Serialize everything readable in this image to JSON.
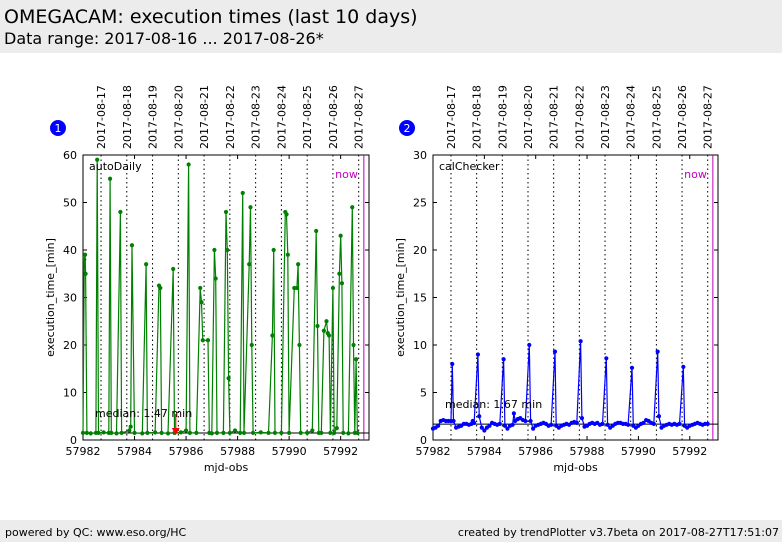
{
  "header": {
    "title": "OMEGACAM: execution times (last 10 days)",
    "subtitle": "Data range: 2017-08-16 ... 2017-08-26*"
  },
  "footer": {
    "left": "powered by QC: www.eso.org/HC",
    "right": "created by trendPlotter v3.7beta on 2017-08-27T17:51:07"
  },
  "colors": {
    "green": "#008000",
    "blue": "#0000ff",
    "now": "#bf00bf",
    "badge": "#0000ff",
    "arrow": "#ff0000"
  },
  "chart_data": [
    {
      "type": "scatter",
      "panel_badge": "1",
      "label": "autoDaily",
      "now_label": "now",
      "median_label": "median: 1.47 min",
      "median": 1.47,
      "xlabel": "mjd-obs",
      "ylabel": "execution_time_[min]",
      "xlim": [
        57982,
        57993.1
      ],
      "ylim": [
        0,
        60
      ],
      "xticks": [
        57982,
        57984,
        57986,
        57988,
        57990,
        57992
      ],
      "yticks": [
        0,
        10,
        20,
        30,
        40,
        50,
        60
      ],
      "date_ticks": [
        {
          "x": 57982.7,
          "label": "2017-08-17"
        },
        {
          "x": 57983.7,
          "label": "2017-08-18"
        },
        {
          "x": 57984.7,
          "label": "2017-08-19"
        },
        {
          "x": 57985.7,
          "label": "2017-08-20"
        },
        {
          "x": 57986.7,
          "label": "2017-08-21"
        },
        {
          "x": 57987.7,
          "label": "2017-08-22"
        },
        {
          "x": 57988.7,
          "label": "2017-08-23"
        },
        {
          "x": 57989.7,
          "label": "2017-08-24"
        },
        {
          "x": 57990.7,
          "label": "2017-08-25"
        },
        {
          "x": 57991.7,
          "label": "2017-08-26"
        },
        {
          "x": 57992.7,
          "label": "2017-08-27"
        }
      ],
      "now_x": 57992.9,
      "arrow_x": 57985.6,
      "color": "#008000",
      "points": [
        [
          57982.0,
          1.5
        ],
        [
          57982.05,
          38
        ],
        [
          57982.08,
          39
        ],
        [
          57982.1,
          35
        ],
        [
          57982.15,
          1.5
        ],
        [
          57982.3,
          1.4
        ],
        [
          57982.5,
          1.5
        ],
        [
          57982.55,
          59
        ],
        [
          57982.6,
          1.5
        ],
        [
          57982.8,
          1.6
        ],
        [
          57983.0,
          1.5
        ],
        [
          57983.05,
          55
        ],
        [
          57983.1,
          1.5
        ],
        [
          57983.3,
          1.4
        ],
        [
          57983.45,
          48
        ],
        [
          57983.5,
          1.5
        ],
        [
          57983.8,
          2.0
        ],
        [
          57983.85,
          2.8
        ],
        [
          57983.9,
          41
        ],
        [
          57984.0,
          1.5
        ],
        [
          57984.3,
          1.4
        ],
        [
          57984.45,
          37
        ],
        [
          57984.5,
          1.5
        ],
        [
          57984.8,
          1.6
        ],
        [
          57984.95,
          32.5
        ],
        [
          57985.0,
          32
        ],
        [
          57985.05,
          1.5
        ],
        [
          57985.3,
          1.4
        ],
        [
          57985.5,
          36
        ],
        [
          57985.55,
          1.5
        ],
        [
          57985.8,
          1.6
        ],
        [
          57986.0,
          2.0
        ],
        [
          57986.1,
          58
        ],
        [
          57986.15,
          1.5
        ],
        [
          57986.4,
          1.5
        ],
        [
          57986.55,
          32
        ],
        [
          57986.6,
          29
        ],
        [
          57986.65,
          21
        ],
        [
          57986.85,
          21
        ],
        [
          57986.9,
          1.5
        ],
        [
          57987.0,
          1.4
        ],
        [
          57987.1,
          40
        ],
        [
          57987.15,
          34
        ],
        [
          57987.2,
          1.5
        ],
        [
          57987.45,
          1.5
        ],
        [
          57987.55,
          48
        ],
        [
          57987.6,
          40
        ],
        [
          57987.65,
          13
        ],
        [
          57987.7,
          1.5
        ],
        [
          57987.9,
          2.0
        ],
        [
          57988.1,
          1.5
        ],
        [
          57988.2,
          52
        ],
        [
          57988.25,
          1.5
        ],
        [
          57988.45,
          37
        ],
        [
          57988.5,
          49
        ],
        [
          57988.55,
          20
        ],
        [
          57988.6,
          1.5
        ],
        [
          57988.9,
          1.6
        ],
        [
          57989.2,
          1.5
        ],
        [
          57989.35,
          22
        ],
        [
          57989.4,
          40
        ],
        [
          57989.45,
          1.5
        ],
        [
          57989.7,
          1.5
        ],
        [
          57989.85,
          48
        ],
        [
          57989.9,
          47.5
        ],
        [
          57989.95,
          39
        ],
        [
          57990.0,
          1.5
        ],
        [
          57990.2,
          32
        ],
        [
          57990.3,
          32
        ],
        [
          57990.35,
          37
        ],
        [
          57990.4,
          20
        ],
        [
          57990.45,
          1.5
        ],
        [
          57990.7,
          1.5
        ],
        [
          57990.9,
          2.0
        ],
        [
          57991.05,
          44
        ],
        [
          57991.1,
          24
        ],
        [
          57991.15,
          1.5
        ],
        [
          57991.25,
          1.5
        ],
        [
          57991.35,
          23
        ],
        [
          57991.45,
          25
        ],
        [
          57991.5,
          22.5
        ],
        [
          57991.55,
          22
        ],
        [
          57991.6,
          1.5
        ],
        [
          57991.7,
          32
        ],
        [
          57991.75,
          1.5
        ],
        [
          57991.85,
          2.5
        ],
        [
          57991.95,
          35
        ],
        [
          57992.0,
          43
        ],
        [
          57992.05,
          33
        ],
        [
          57992.1,
          1.5
        ],
        [
          57992.3,
          1.4
        ],
        [
          57992.45,
          49
        ],
        [
          57992.5,
          20
        ],
        [
          57992.55,
          1.5
        ],
        [
          57992.6,
          17
        ],
        [
          57992.65,
          1.5
        ]
      ]
    },
    {
      "type": "scatter",
      "panel_badge": "2",
      "label": "calChecker",
      "now_label": "now",
      "median_label": "median: 1.67 min",
      "median": 1.67,
      "xlabel": "mjd-obs",
      "ylabel": "execution_time_[min]",
      "xlim": [
        57982,
        57993.1
      ],
      "ylim": [
        0,
        30
      ],
      "xticks": [
        57982,
        57984,
        57986,
        57988,
        57990,
        57992
      ],
      "yticks": [
        0,
        5,
        10,
        15,
        20,
        25,
        30
      ],
      "date_ticks": [
        {
          "x": 57982.7,
          "label": "2017-08-17"
        },
        {
          "x": 57983.7,
          "label": "2017-08-18"
        },
        {
          "x": 57984.7,
          "label": "2017-08-19"
        },
        {
          "x": 57985.7,
          "label": "2017-08-20"
        },
        {
          "x": 57986.7,
          "label": "2017-08-21"
        },
        {
          "x": 57987.7,
          "label": "2017-08-22"
        },
        {
          "x": 57988.7,
          "label": "2017-08-23"
        },
        {
          "x": 57989.7,
          "label": "2017-08-24"
        },
        {
          "x": 57990.7,
          "label": "2017-08-25"
        },
        {
          "x": 57991.7,
          "label": "2017-08-26"
        },
        {
          "x": 57992.7,
          "label": "2017-08-27"
        }
      ],
      "now_x": 57992.9,
      "color": "#0000ff",
      "points": [
        [
          57982.0,
          1.2
        ],
        [
          57982.1,
          1.3
        ],
        [
          57982.2,
          1.5
        ],
        [
          57982.3,
          2.0
        ],
        [
          57982.4,
          2.1
        ],
        [
          57982.5,
          2.0
        ],
        [
          57982.6,
          2.0
        ],
        [
          57982.7,
          2.0
        ],
        [
          57982.75,
          8.0
        ],
        [
          57982.8,
          2.0
        ],
        [
          57982.9,
          1.3
        ],
        [
          57983.0,
          1.4
        ],
        [
          57983.1,
          1.5
        ],
        [
          57983.2,
          1.7
        ],
        [
          57983.3,
          1.7
        ],
        [
          57983.4,
          1.6
        ],
        [
          57983.5,
          1.7
        ],
        [
          57983.55,
          2.0
        ],
        [
          57983.6,
          1.8
        ],
        [
          57983.75,
          9.0
        ],
        [
          57983.8,
          2.5
        ],
        [
          57983.9,
          1.3
        ],
        [
          57984.0,
          1.0
        ],
        [
          57984.1,
          1.3
        ],
        [
          57984.2,
          1.5
        ],
        [
          57984.3,
          1.8
        ],
        [
          57984.4,
          1.7
        ],
        [
          57984.5,
          1.6
        ],
        [
          57984.6,
          1.7
        ],
        [
          57984.75,
          8.5
        ],
        [
          57984.8,
          1.5
        ],
        [
          57984.9,
          1.2
        ],
        [
          57985.0,
          1.5
        ],
        [
          57985.1,
          1.6
        ],
        [
          57985.15,
          2.8
        ],
        [
          57985.2,
          2.0
        ],
        [
          57985.3,
          2.2
        ],
        [
          57985.4,
          2.3
        ],
        [
          57985.5,
          2.1
        ],
        [
          57985.6,
          2.0
        ],
        [
          57985.75,
          10.0
        ],
        [
          57985.8,
          2.0
        ],
        [
          57985.9,
          1.2
        ],
        [
          57986.0,
          1.5
        ],
        [
          57986.1,
          1.6
        ],
        [
          57986.2,
          1.7
        ],
        [
          57986.3,
          1.8
        ],
        [
          57986.4,
          1.7
        ],
        [
          57986.5,
          1.5
        ],
        [
          57986.6,
          1.6
        ],
        [
          57986.75,
          9.3
        ],
        [
          57986.8,
          1.5
        ],
        [
          57986.9,
          1.3
        ],
        [
          57987.0,
          1.5
        ],
        [
          57987.1,
          1.6
        ],
        [
          57987.2,
          1.7
        ],
        [
          57987.3,
          1.6
        ],
        [
          57987.4,
          1.8
        ],
        [
          57987.5,
          1.9
        ],
        [
          57987.6,
          1.8
        ],
        [
          57987.75,
          10.4
        ],
        [
          57987.8,
          2.3
        ],
        [
          57987.9,
          1.4
        ],
        [
          57988.0,
          1.5
        ],
        [
          57988.1,
          1.7
        ],
        [
          57988.2,
          1.8
        ],
        [
          57988.3,
          1.7
        ],
        [
          57988.4,
          1.8
        ],
        [
          57988.5,
          1.6
        ],
        [
          57988.6,
          1.7
        ],
        [
          57988.75,
          8.6
        ],
        [
          57988.8,
          1.6
        ],
        [
          57988.9,
          1.3
        ],
        [
          57989.0,
          1.5
        ],
        [
          57989.1,
          1.7
        ],
        [
          57989.2,
          1.8
        ],
        [
          57989.3,
          1.8
        ],
        [
          57989.4,
          1.7
        ],
        [
          57989.5,
          1.7
        ],
        [
          57989.6,
          1.6
        ],
        [
          57989.75,
          7.6
        ],
        [
          57989.8,
          1.5
        ],
        [
          57989.9,
          1.3
        ],
        [
          57990.0,
          1.5
        ],
        [
          57990.1,
          1.7
        ],
        [
          57990.2,
          1.8
        ],
        [
          57990.3,
          2.1
        ],
        [
          57990.4,
          2.0
        ],
        [
          57990.5,
          1.8
        ],
        [
          57990.6,
          1.7
        ],
        [
          57990.75,
          9.3
        ],
        [
          57990.8,
          2.5
        ],
        [
          57990.9,
          1.3
        ],
        [
          57991.0,
          1.5
        ],
        [
          57991.1,
          1.6
        ],
        [
          57991.2,
          1.7
        ],
        [
          57991.3,
          1.6
        ],
        [
          57991.4,
          1.7
        ],
        [
          57991.5,
          1.6
        ],
        [
          57991.6,
          1.7
        ],
        [
          57991.75,
          7.7
        ],
        [
          57991.8,
          1.5
        ],
        [
          57991.9,
          1.3
        ],
        [
          57992.0,
          1.5
        ],
        [
          57992.1,
          1.6
        ],
        [
          57992.2,
          1.7
        ],
        [
          57992.3,
          1.8
        ],
        [
          57992.4,
          1.7
        ],
        [
          57992.5,
          1.6
        ],
        [
          57992.6,
          1.7
        ],
        [
          57992.7,
          1.7
        ]
      ]
    }
  ]
}
